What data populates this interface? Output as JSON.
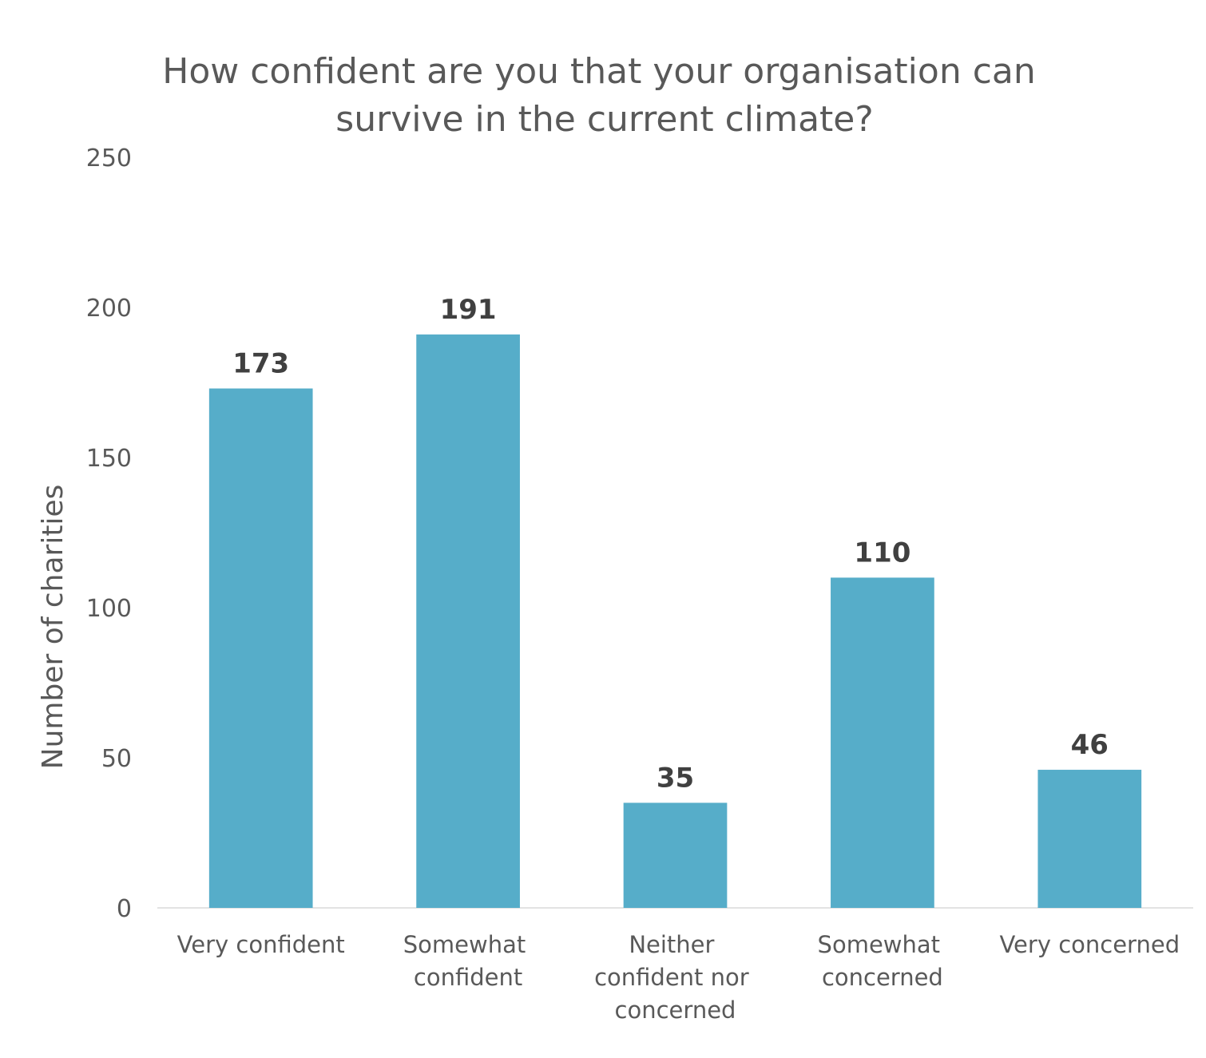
{
  "chart_data": {
    "type": "bar",
    "title": "How confident are you that your organisation can survive in the current climate?",
    "y_label": "Number of charities",
    "categories": [
      "Very confident",
      "Somewhat confident",
      "Neither confident nor concerned",
      "Somewhat concerned",
      "Very concerned"
    ],
    "values": [
      173,
      191,
      35,
      110,
      46
    ],
    "color": "#56adc9",
    "ylim": [
      0,
      250
    ],
    "yticks": [
      0,
      50,
      100,
      150,
      200,
      250
    ],
    "grid": false
  }
}
